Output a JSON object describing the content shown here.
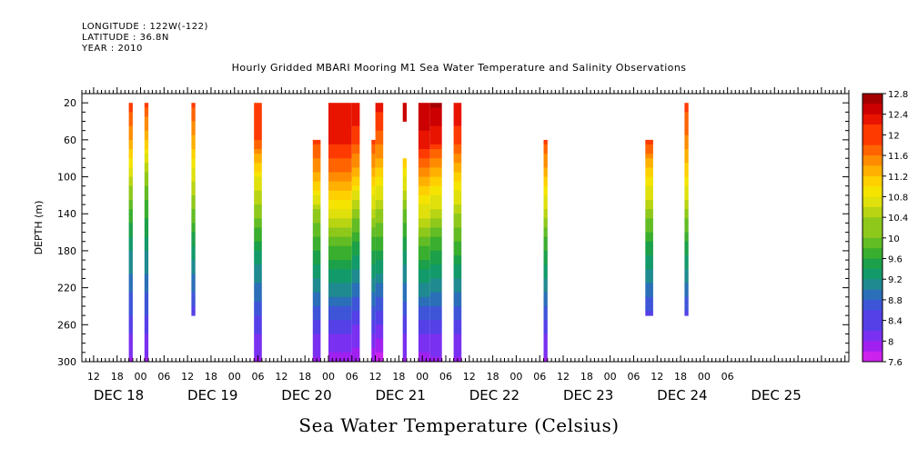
{
  "header": {
    "longitude": "LONGITUDE : 122W(-122)",
    "latitude": "LATITUDE : 36.8N",
    "year": "YEAR : 2010"
  },
  "chart_data": {
    "type": "heatmap",
    "title": "Hourly Gridded MBARI Mooring M1 Sea Water Temperature and Salinity Observations",
    "xlabel": "Sea Water Temperature (Celsius)",
    "ylabel": "DEPTH (m)",
    "y_ticks": [
      20,
      60,
      100,
      140,
      180,
      220,
      260,
      300
    ],
    "ylim": [
      300,
      10
    ],
    "x_hour_ticks": [
      "12",
      "18",
      "00",
      "06",
      "12",
      "18",
      "00",
      "06",
      "12",
      "18",
      "00",
      "06",
      "12",
      "18",
      "00",
      "06",
      "12",
      "18",
      "00",
      "06",
      "12",
      "18",
      "00",
      "06",
      "12",
      "18",
      "00",
      "06"
    ],
    "x_day_labels": [
      "DEC 18",
      "DEC 19",
      "DEC 20",
      "DEC 21",
      "DEC 22",
      "DEC 23",
      "DEC 24",
      "DEC 25"
    ],
    "colorbar_ticks": [
      "12.8",
      "12.4",
      "12",
      "11.6",
      "11.2",
      "10.8",
      "10.4",
      "10",
      "9.6",
      "9.2",
      "8.8",
      "8.4",
      "8",
      "7.6"
    ],
    "colorbar_range": [
      7.6,
      12.8
    ],
    "columns": [
      {
        "start": "Dec 17 21:00",
        "end": "Dec 17 22:00",
        "depth_top": 20,
        "depth_bottom": 300,
        "profile": [
          [
            20,
            12.0
          ],
          [
            60,
            11.5
          ],
          [
            100,
            10.5
          ],
          [
            140,
            9.8
          ],
          [
            180,
            9.2
          ],
          [
            220,
            8.8
          ],
          [
            260,
            8.4
          ],
          [
            300,
            8.0
          ]
        ]
      },
      {
        "start": "Dec 18 01:00",
        "end": "Dec 18 02:00",
        "depth_top": 20,
        "depth_bottom": 300,
        "profile": [
          [
            20,
            12.0
          ],
          [
            60,
            11.2
          ],
          [
            100,
            10.2
          ],
          [
            140,
            9.7
          ],
          [
            180,
            9.2
          ],
          [
            220,
            8.8
          ],
          [
            260,
            8.4
          ],
          [
            300,
            8.0
          ]
        ]
      },
      {
        "start": "Dec 18 13:00",
        "end": "Dec 18 14:00",
        "depth_top": 20,
        "depth_bottom": 250,
        "profile": [
          [
            20,
            12.0
          ],
          [
            60,
            11.4
          ],
          [
            100,
            10.6
          ],
          [
            140,
            10.0
          ],
          [
            180,
            9.3
          ],
          [
            220,
            8.8
          ],
          [
            250,
            8.4
          ]
        ]
      },
      {
        "start": "Dec 19 05:00",
        "end": "Dec 19 07:00",
        "depth_top": 20,
        "depth_bottom": 300,
        "profile": [
          [
            20,
            12.1
          ],
          [
            60,
            11.9
          ],
          [
            100,
            10.8
          ],
          [
            140,
            10.2
          ],
          [
            180,
            9.4
          ],
          [
            220,
            8.9
          ],
          [
            260,
            8.4
          ],
          [
            300,
            8.0
          ]
        ]
      },
      {
        "start": "Dec 19 20:00",
        "end": "Dec 19 22:00",
        "depth_top": 60,
        "depth_bottom": 300,
        "profile": [
          [
            60,
            12.0
          ],
          [
            100,
            11.4
          ],
          [
            140,
            10.2
          ],
          [
            180,
            9.6
          ],
          [
            220,
            9.0
          ],
          [
            260,
            8.4
          ],
          [
            300,
            8.0
          ]
        ]
      },
      {
        "start": "Dec 20 00:00",
        "end": "Dec 20 06:00",
        "depth_top": 20,
        "depth_bottom": 300,
        "profile": [
          [
            20,
            12.3
          ],
          [
            60,
            12.2
          ],
          [
            100,
            11.6
          ],
          [
            140,
            10.6
          ],
          [
            180,
            9.8
          ],
          [
            220,
            9.1
          ],
          [
            260,
            8.4
          ],
          [
            300,
            7.9
          ]
        ]
      },
      {
        "start": "Dec 20 06:00",
        "end": "Dec 20 08:00",
        "depth_top": 20,
        "depth_bottom": 300,
        "profile": [
          [
            20,
            12.3
          ],
          [
            60,
            12.0
          ],
          [
            100,
            11.2
          ],
          [
            140,
            10.2
          ],
          [
            180,
            9.5
          ],
          [
            220,
            8.9
          ],
          [
            260,
            8.3
          ],
          [
            300,
            7.9
          ]
        ]
      },
      {
        "start": "Dec 20 11:00",
        "end": "Dec 20 12:00",
        "depth_top": 60,
        "depth_bottom": 300,
        "profile": [
          [
            60,
            12.0
          ],
          [
            100,
            11.2
          ],
          [
            140,
            10.4
          ],
          [
            180,
            9.6
          ],
          [
            220,
            9.0
          ],
          [
            260,
            8.4
          ],
          [
            300,
            7.8
          ]
        ]
      },
      {
        "start": "Dec 20 12:00",
        "end": "Dec 20 14:00",
        "depth_top": 20,
        "depth_bottom": 300,
        "profile": [
          [
            20,
            12.2
          ],
          [
            60,
            11.8
          ],
          [
            100,
            11.0
          ],
          [
            140,
            10.2
          ],
          [
            180,
            9.6
          ],
          [
            220,
            8.9
          ],
          [
            260,
            8.3
          ],
          [
            300,
            7.7
          ]
        ]
      },
      {
        "start": "Dec 20 19:00",
        "end": "Dec 20 20:00",
        "depth_top": 20,
        "depth_bottom": 40,
        "profile": [
          [
            20,
            12.5
          ],
          [
            40,
            12.4
          ]
        ]
      },
      {
        "start": "Dec 20 19:00",
        "end": "Dec 20 20:00",
        "depth_top": 80,
        "depth_bottom": 300,
        "profile": [
          [
            80,
            11.2
          ],
          [
            100,
            10.8
          ],
          [
            140,
            10.0
          ],
          [
            180,
            9.4
          ],
          [
            220,
            8.9
          ],
          [
            260,
            8.4
          ],
          [
            300,
            8.0
          ]
        ]
      },
      {
        "start": "Dec 21 02:00",
        "end": "Dec 21 05:00",
        "depth_top": 20,
        "depth_bottom": 300,
        "profile": [
          [
            20,
            12.6
          ],
          [
            60,
            12.2
          ],
          [
            100,
            11.2
          ],
          [
            140,
            10.4
          ],
          [
            180,
            9.6
          ],
          [
            220,
            9.0
          ],
          [
            260,
            8.4
          ],
          [
            300,
            8.0
          ]
        ]
      },
      {
        "start": "Dec 21 08:00",
        "end": "Dec 21 10:00",
        "depth_top": 20,
        "depth_bottom": 300,
        "profile": [
          [
            20,
            12.3
          ],
          [
            60,
            12.0
          ],
          [
            100,
            11.1
          ],
          [
            140,
            10.3
          ],
          [
            180,
            9.7
          ],
          [
            220,
            9.0
          ],
          [
            260,
            8.4
          ],
          [
            300,
            8.0
          ]
        ]
      },
      {
        "start": "Dec 22 07:00",
        "end": "Dec 22 08:00",
        "depth_top": 60,
        "depth_bottom": 300,
        "profile": [
          [
            60,
            12.0
          ],
          [
            100,
            11.2
          ],
          [
            140,
            10.4
          ],
          [
            180,
            9.6
          ],
          [
            220,
            9.0
          ],
          [
            260,
            8.4
          ],
          [
            300,
            8.0
          ]
        ]
      },
      {
        "start": "Dec 23 09:00",
        "end": "Dec 23 11:00",
        "depth_top": 60,
        "depth_bottom": 250,
        "profile": [
          [
            60,
            12.0
          ],
          [
            100,
            11.0
          ],
          [
            140,
            10.2
          ],
          [
            180,
            9.5
          ],
          [
            220,
            8.9
          ],
          [
            250,
            8.4
          ]
        ]
      },
      {
        "start": "Dec 23 19:00",
        "end": "Dec 23 20:00",
        "depth_top": 20,
        "depth_bottom": 250,
        "profile": [
          [
            20,
            12.0
          ],
          [
            60,
            11.6
          ],
          [
            100,
            11.0
          ],
          [
            140,
            10.2
          ],
          [
            180,
            9.5
          ],
          [
            220,
            8.9
          ],
          [
            250,
            8.4
          ]
        ]
      }
    ],
    "columns_wide": [
      {
        "start": "Dec 20 23:00",
        "end": "Dec 21 02:00",
        "depth_top": 20,
        "depth_bottom": 300,
        "profile": [
          [
            20,
            12.5
          ],
          [
            60,
            12.3
          ],
          [
            100,
            11.4
          ],
          [
            140,
            10.6
          ],
          [
            180,
            9.8
          ],
          [
            220,
            9.1
          ],
          [
            260,
            8.4
          ],
          [
            300,
            7.9
          ]
        ]
      }
    ],
    "grid": false,
    "legend": "colorbar-right"
  }
}
